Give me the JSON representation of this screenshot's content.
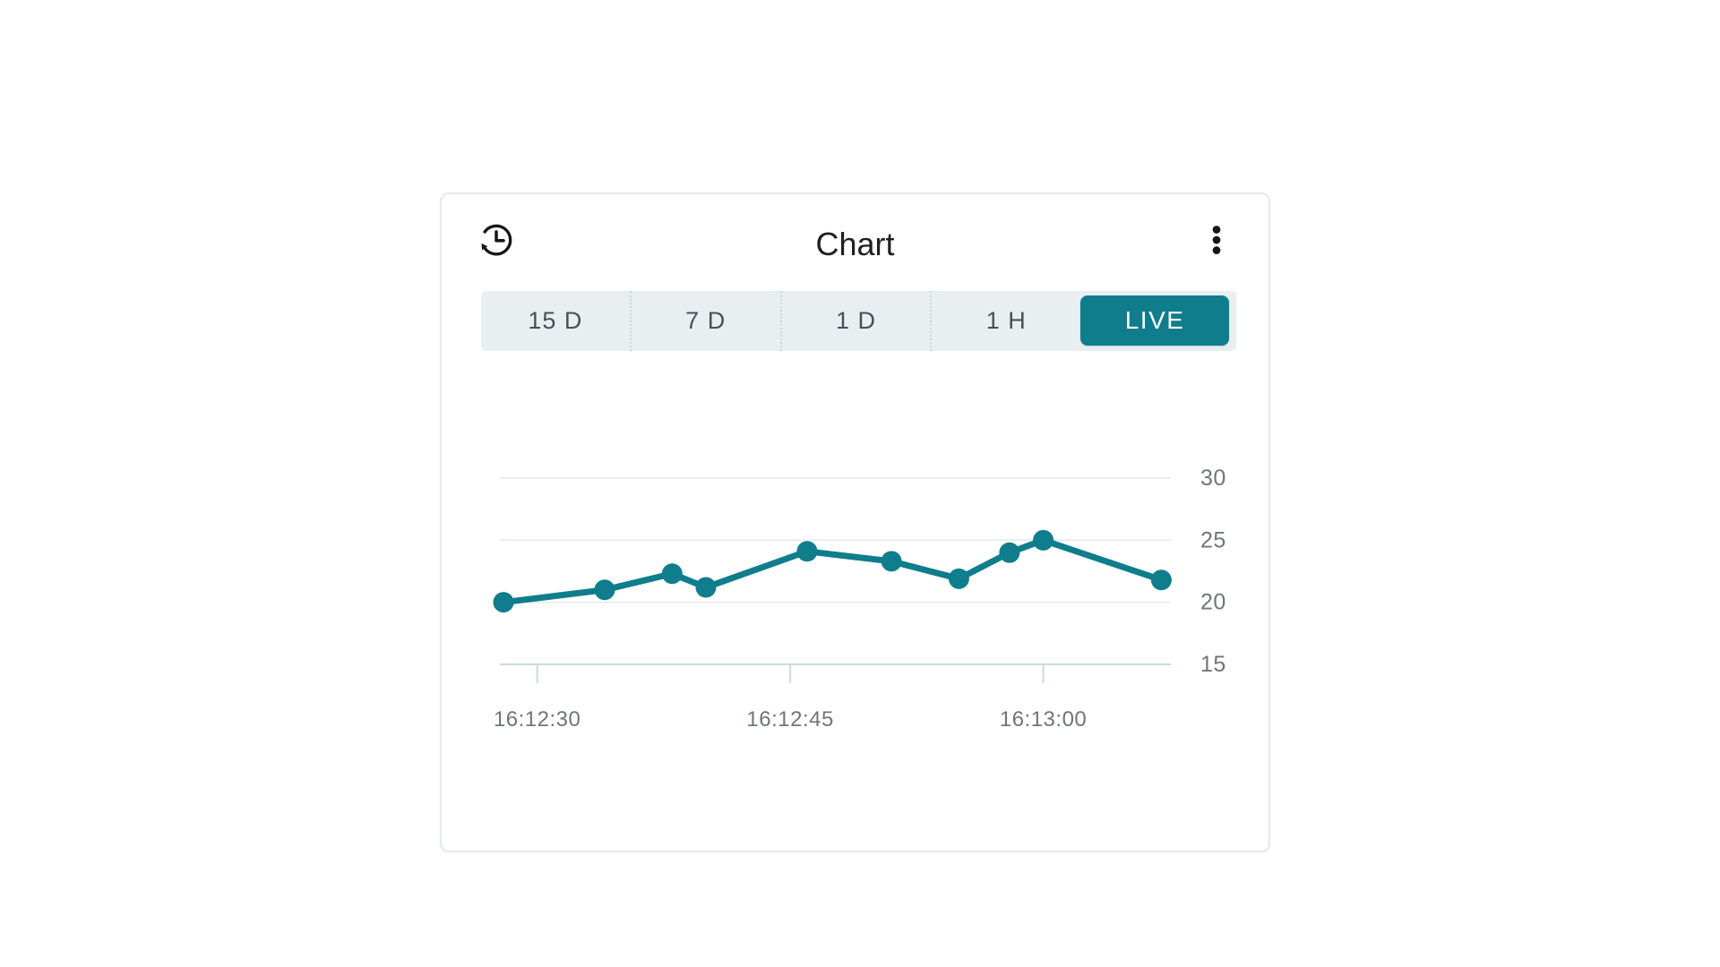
{
  "card": {
    "title": "Chart",
    "header_icons": [
      {
        "name": "history-icon"
      },
      {
        "name": "kebab-menu-icon"
      }
    ]
  },
  "tabs": [
    {
      "label": "15 D",
      "active": false
    },
    {
      "label": "7 D",
      "active": false
    },
    {
      "label": "1 D",
      "active": false
    },
    {
      "label": "1 H",
      "active": false
    },
    {
      "label": "LIVE",
      "active": true
    }
  ],
  "colors": {
    "accent_teal": "#0f7d8b",
    "tab_bar_bg": "#e9eff1",
    "tab_text": "#43525c",
    "live_tab_text": "#ffffff",
    "grid_line": "#e4e8e9",
    "axis_line": "#cdd9e0",
    "axis_label": "#6d7678",
    "title_text": "#1f1f1f",
    "card_border": "#e3eaec"
  },
  "chart_data": {
    "type": "line",
    "title": "Chart",
    "xlabel": "",
    "ylabel": "",
    "grid": true,
    "legend": false,
    "ylim": [
      15,
      32.5
    ],
    "y_ticks": [
      15,
      20,
      25,
      30
    ],
    "x_ticks": [
      {
        "label": "16:12:30",
        "sec": 30
      },
      {
        "label": "16:12:45",
        "sec": 45
      },
      {
        "label": "16:13:00",
        "sec": 60
      }
    ],
    "series": [
      {
        "name": "live-series",
        "color": "#0f7d8b",
        "line_width": 7,
        "point_radius": 11.5,
        "x": [
          "16:12:28",
          "16:12:34",
          "16:12:38",
          "16:12:40",
          "16:12:46",
          "16:12:51",
          "16:12:55",
          "16:12:58",
          "16:13:00",
          "16:13:07"
        ],
        "x_seconds": [
          28,
          34,
          38,
          40,
          46,
          51,
          55,
          58,
          60,
          67
        ],
        "values": [
          20.0,
          21.0,
          22.3,
          21.2,
          24.1,
          23.3,
          21.9,
          24.0,
          25.0,
          21.8
        ]
      }
    ]
  }
}
